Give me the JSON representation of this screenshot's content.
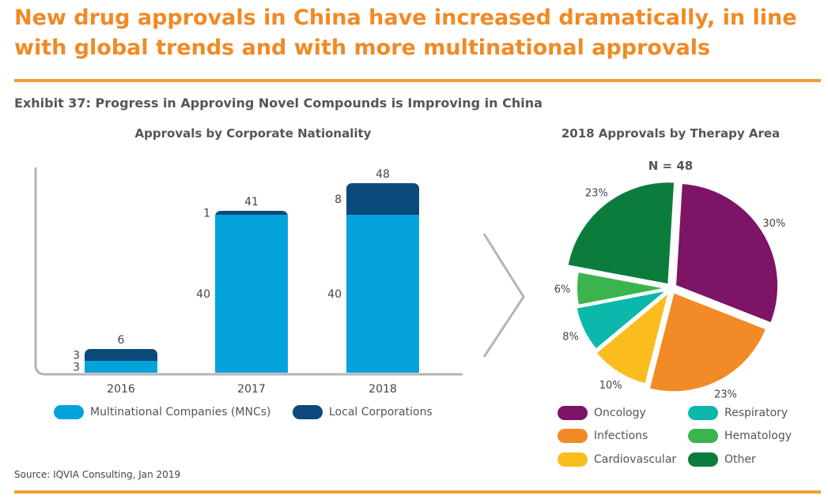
{
  "headline": "New drug approvals in China have increased dramatically, in line with global trends and with more multinational approvals",
  "exhibit_title": "Exhibit 37: Progress in Approving Novel Compounds is Improving in China",
  "source": "Source: IQVIA Consulting, Jan 2019",
  "colors": {
    "accent": "#f08a24",
    "mnc": "#05a3dc",
    "local": "#0b4a7a"
  },
  "chart_data": [
    {
      "type": "bar",
      "stacked": true,
      "title": "Approvals by Corporate Nationality",
      "categories": [
        "2016",
        "2017",
        "2018"
      ],
      "series": [
        {
          "name": "Multinational Companies (MNCs)",
          "values": [
            3,
            40,
            40
          ],
          "color": "#05a3dc"
        },
        {
          "name": "Local Corporations",
          "values": [
            3,
            1,
            8
          ],
          "color": "#0b4a7a"
        }
      ],
      "totals": [
        6,
        41,
        48
      ],
      "ylim": [
        0,
        52
      ],
      "legend": "bottom"
    },
    {
      "type": "pie",
      "title": "2018 Approvals by Therapy Area",
      "annotation": "N = 48",
      "slices": [
        {
          "label": "Oncology",
          "value": 30,
          "display": "30%",
          "color": "#7d1466"
        },
        {
          "label": "Infections",
          "value": 23,
          "display": "23%",
          "color": "#f28a25"
        },
        {
          "label": "Cardiovascular",
          "value": 10,
          "display": "10%",
          "color": "#fbbd1d"
        },
        {
          "label": "Respiratory",
          "value": 8,
          "display": "8%",
          "color": "#0bb8aa"
        },
        {
          "label": "Hematology",
          "value": 6,
          "display": "6%",
          "color": "#3cb44e"
        },
        {
          "label": "Other",
          "value": 23,
          "display": "23%",
          "color": "#0b7c3c"
        }
      ],
      "legend": "bottom"
    }
  ]
}
